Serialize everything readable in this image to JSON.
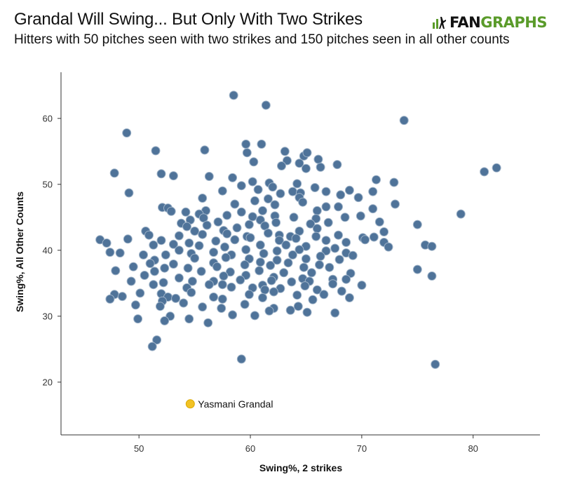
{
  "header": {
    "title": "Grandal Will Swing... But Only With Two Strikes",
    "subtitle": "Hitters with 50 pitches seen with two strikes and 150 pitches seen in all other counts"
  },
  "logo": {
    "part1": "FAN",
    "part2": "GRAPHS",
    "colors": {
      "fan": "#111111",
      "graphs": "#5a9b2a"
    }
  },
  "chart_data": {
    "type": "scatter",
    "xlabel": "Swing%, 2 strikes",
    "ylabel": "Swing%, All Other Counts",
    "xlim": [
      43,
      86
    ],
    "ylim": [
      12,
      67
    ],
    "xticks": [
      50,
      60,
      70,
      80
    ],
    "yticks": [
      20,
      30,
      40,
      50,
      60
    ],
    "grid": false,
    "colors": {
      "points": "#4f7399",
      "point_stroke": "#9fb3c8",
      "highlight": "#f2c224",
      "highlight_stroke": "#d9a800"
    },
    "highlight": {
      "name": "Yasmani Grandal",
      "x": 54.6,
      "y": 16.7
    },
    "points": [
      [
        58.5,
        63.5
      ],
      [
        61.4,
        62.0
      ],
      [
        73.8,
        59.7
      ],
      [
        48.9,
        57.8
      ],
      [
        59.6,
        56.1
      ],
      [
        61.0,
        56.1
      ],
      [
        51.5,
        55.1
      ],
      [
        55.9,
        55.2
      ],
      [
        59.7,
        54.8
      ],
      [
        63.1,
        55.0
      ],
      [
        64.8,
        54.3
      ],
      [
        65.1,
        54.8
      ],
      [
        66.1,
        53.8
      ],
      [
        60.3,
        53.4
      ],
      [
        63.3,
        53.6
      ],
      [
        64.4,
        53.2
      ],
      [
        67.8,
        53.0
      ],
      [
        62.8,
        52.8
      ],
      [
        65.0,
        52.4
      ],
      [
        66.3,
        52.6
      ],
      [
        47.8,
        51.7
      ],
      [
        52.0,
        51.6
      ],
      [
        53.1,
        51.3
      ],
      [
        56.3,
        51.2
      ],
      [
        58.4,
        51.0
      ],
      [
        81.0,
        51.9
      ],
      [
        82.1,
        52.5
      ],
      [
        71.3,
        50.7
      ],
      [
        72.9,
        50.3
      ],
      [
        60.2,
        50.4
      ],
      [
        61.7,
        50.2
      ],
      [
        64.2,
        50.1
      ],
      [
        59.2,
        49.8
      ],
      [
        62.0,
        49.6
      ],
      [
        65.8,
        49.5
      ],
      [
        66.8,
        48.9
      ],
      [
        68.9,
        49.1
      ],
      [
        57.5,
        49.0
      ],
      [
        60.7,
        49.2
      ],
      [
        63.8,
        48.9
      ],
      [
        49.1,
        48.7
      ],
      [
        62.7,
        48.6
      ],
      [
        64.5,
        48.7
      ],
      [
        71.0,
        48.9
      ],
      [
        55.7,
        47.9
      ],
      [
        64.4,
        48.0
      ],
      [
        68.1,
        48.4
      ],
      [
        69.7,
        48.0
      ],
      [
        60.4,
        47.5
      ],
      [
        61.6,
        47.8
      ],
      [
        58.6,
        47.0
      ],
      [
        62.2,
        46.9
      ],
      [
        64.7,
        47.3
      ],
      [
        66.8,
        46.6
      ],
      [
        67.9,
        46.6
      ],
      [
        73.0,
        47.0
      ],
      [
        52.1,
        46.5
      ],
      [
        52.6,
        46.4
      ],
      [
        54.2,
        45.8
      ],
      [
        56.0,
        46.0
      ],
      [
        59.2,
        45.8
      ],
      [
        61.1,
        46.0
      ],
      [
        66.0,
        46.0
      ],
      [
        71.0,
        46.3
      ],
      [
        52.9,
        45.9
      ],
      [
        55.4,
        45.5
      ],
      [
        57.9,
        45.3
      ],
      [
        60.2,
        45.1
      ],
      [
        62.2,
        45.2
      ],
      [
        63.9,
        45.0
      ],
      [
        65.9,
        44.8
      ],
      [
        68.5,
        45.0
      ],
      [
        69.9,
        45.2
      ],
      [
        78.9,
        45.5
      ],
      [
        54.6,
        44.6
      ],
      [
        55.8,
        44.9
      ],
      [
        57.1,
        44.3
      ],
      [
        60.9,
        44.6
      ],
      [
        62.3,
        44.2
      ],
      [
        65.4,
        44.0
      ],
      [
        67.0,
        44.2
      ],
      [
        71.6,
        44.3
      ],
      [
        53.8,
        44.1
      ],
      [
        56.1,
        43.8
      ],
      [
        59.9,
        43.9
      ],
      [
        54.3,
        43.6
      ],
      [
        58.8,
        43.4
      ],
      [
        61.3,
        43.7
      ],
      [
        66.0,
        43.3
      ],
      [
        75.0,
        43.9
      ],
      [
        50.6,
        42.9
      ],
      [
        55.0,
        42.9
      ],
      [
        57.6,
        43.0
      ],
      [
        64.4,
        42.9
      ],
      [
        72.0,
        42.8
      ],
      [
        50.9,
        42.3
      ],
      [
        53.6,
        42.2
      ],
      [
        55.7,
        42.4
      ],
      [
        57.9,
        42.5
      ],
      [
        59.7,
        42.1
      ],
      [
        61.6,
        42.6
      ],
      [
        62.6,
        42.3
      ],
      [
        63.6,
        42.1
      ],
      [
        65.9,
        42.1
      ],
      [
        67.9,
        42.3
      ],
      [
        70.1,
        41.9
      ],
      [
        71.1,
        42.0
      ],
      [
        46.5,
        41.6
      ],
      [
        49.0,
        41.7
      ],
      [
        52.0,
        41.5
      ],
      [
        54.5,
        41.1
      ],
      [
        56.9,
        41.4
      ],
      [
        58.6,
        41.6
      ],
      [
        60.0,
        41.9
      ],
      [
        62.6,
        41.5
      ],
      [
        64.1,
        41.8
      ],
      [
        66.8,
        41.5
      ],
      [
        68.6,
        41.2
      ],
      [
        70.3,
        41.6
      ],
      [
        72.0,
        41.2
      ],
      [
        47.1,
        41.1
      ],
      [
        51.3,
        40.8
      ],
      [
        53.1,
        40.9
      ],
      [
        55.4,
        40.7
      ],
      [
        57.7,
        40.5
      ],
      [
        60.9,
        40.8
      ],
      [
        63.2,
        40.8
      ],
      [
        65.0,
        40.6
      ],
      [
        67.6,
        40.3
      ],
      [
        72.4,
        40.5
      ],
      [
        75.7,
        40.8
      ],
      [
        76.3,
        40.6
      ],
      [
        53.6,
        40.0
      ],
      [
        56.7,
        39.7
      ],
      [
        59.6,
        40.1
      ],
      [
        62.4,
        39.9
      ],
      [
        64.4,
        40.1
      ],
      [
        66.8,
        39.9
      ],
      [
        68.6,
        39.6
      ],
      [
        47.4,
        39.7
      ],
      [
        48.3,
        39.6
      ],
      [
        50.4,
        39.3
      ],
      [
        52.4,
        39.3
      ],
      [
        54.7,
        39.5
      ],
      [
        58.3,
        39.3
      ],
      [
        61.2,
        39.5
      ],
      [
        63.8,
        39.3
      ],
      [
        66.3,
        39.1
      ],
      [
        69.2,
        39.2
      ],
      [
        51.4,
        38.5
      ],
      [
        55.0,
        38.8
      ],
      [
        57.8,
        38.9
      ],
      [
        59.9,
        38.7
      ],
      [
        62.4,
        38.5
      ],
      [
        65.0,
        38.7
      ],
      [
        68.0,
        38.6
      ],
      [
        51.0,
        38.0
      ],
      [
        53.1,
        37.9
      ],
      [
        56.7,
        38.1
      ],
      [
        60.9,
        38.2
      ],
      [
        63.4,
        38.1
      ],
      [
        66.2,
        37.8
      ],
      [
        49.5,
        37.5
      ],
      [
        52.3,
        37.3
      ],
      [
        54.4,
        37.3
      ],
      [
        57.0,
        37.5
      ],
      [
        59.5,
        37.8
      ],
      [
        61.8,
        37.7
      ],
      [
        64.8,
        37.4
      ],
      [
        67.1,
        37.4
      ],
      [
        75.0,
        37.1
      ],
      [
        47.9,
        36.9
      ],
      [
        51.4,
        36.8
      ],
      [
        55.6,
        36.8
      ],
      [
        58.2,
        36.7
      ],
      [
        60.8,
        36.9
      ],
      [
        63.0,
        36.6
      ],
      [
        65.5,
        36.6
      ],
      [
        69.0,
        36.5
      ],
      [
        50.5,
        36.2
      ],
      [
        53.6,
        35.8
      ],
      [
        57.6,
        36.1
      ],
      [
        59.6,
        36.2
      ],
      [
        62.1,
        35.9
      ],
      [
        64.7,
        35.7
      ],
      [
        67.4,
        35.6
      ],
      [
        76.3,
        36.1
      ],
      [
        49.3,
        35.3
      ],
      [
        52.2,
        35.1
      ],
      [
        54.8,
        35.3
      ],
      [
        56.7,
        35.3
      ],
      [
        59.1,
        35.5
      ],
      [
        61.9,
        35.4
      ],
      [
        63.7,
        35.2
      ],
      [
        65.3,
        35.3
      ],
      [
        68.6,
        35.6
      ],
      [
        51.3,
        34.8
      ],
      [
        56.3,
        34.8
      ],
      [
        57.5,
        34.8
      ],
      [
        61.1,
        34.7
      ],
      [
        64.9,
        34.6
      ],
      [
        67.4,
        34.9
      ],
      [
        70.0,
        34.7
      ],
      [
        54.3,
        34.3
      ],
      [
        58.3,
        34.4
      ],
      [
        60.2,
        34.3
      ],
      [
        61.3,
        34.0
      ],
      [
        62.7,
        34.2
      ],
      [
        66.0,
        34.0
      ],
      [
        68.2,
        33.8
      ],
      [
        47.8,
        33.3
      ],
      [
        50.1,
        33.5
      ],
      [
        52.0,
        33.4
      ],
      [
        54.7,
        33.6
      ],
      [
        59.9,
        33.3
      ],
      [
        62.1,
        33.7
      ],
      [
        64.2,
        33.2
      ],
      [
        66.6,
        33.3
      ],
      [
        48.5,
        33.0
      ],
      [
        52.6,
        32.9
      ],
      [
        53.3,
        32.7
      ],
      [
        56.7,
        32.9
      ],
      [
        57.5,
        32.6
      ],
      [
        61.1,
        32.8
      ],
      [
        65.6,
        32.5
      ],
      [
        68.9,
        32.8
      ],
      [
        47.4,
        32.6
      ],
      [
        52.1,
        32.3
      ],
      [
        54.0,
        32.0
      ],
      [
        59.5,
        31.8
      ],
      [
        62.1,
        31.2
      ],
      [
        64.3,
        31.5
      ],
      [
        49.7,
        31.7
      ],
      [
        51.9,
        31.5
      ],
      [
        55.7,
        31.4
      ],
      [
        57.4,
        31.2
      ],
      [
        61.7,
        30.8
      ],
      [
        63.6,
        30.9
      ],
      [
        65.1,
        30.6
      ],
      [
        67.6,
        30.5
      ],
      [
        52.8,
        30.0
      ],
      [
        58.4,
        30.2
      ],
      [
        60.4,
        30.1
      ],
      [
        54.5,
        29.6
      ],
      [
        49.9,
        29.6
      ],
      [
        52.3,
        29.3
      ],
      [
        56.2,
        29.0
      ],
      [
        51.6,
        26.4
      ],
      [
        51.2,
        25.4
      ],
      [
        59.2,
        23.5
      ],
      [
        76.6,
        22.7
      ]
    ]
  }
}
